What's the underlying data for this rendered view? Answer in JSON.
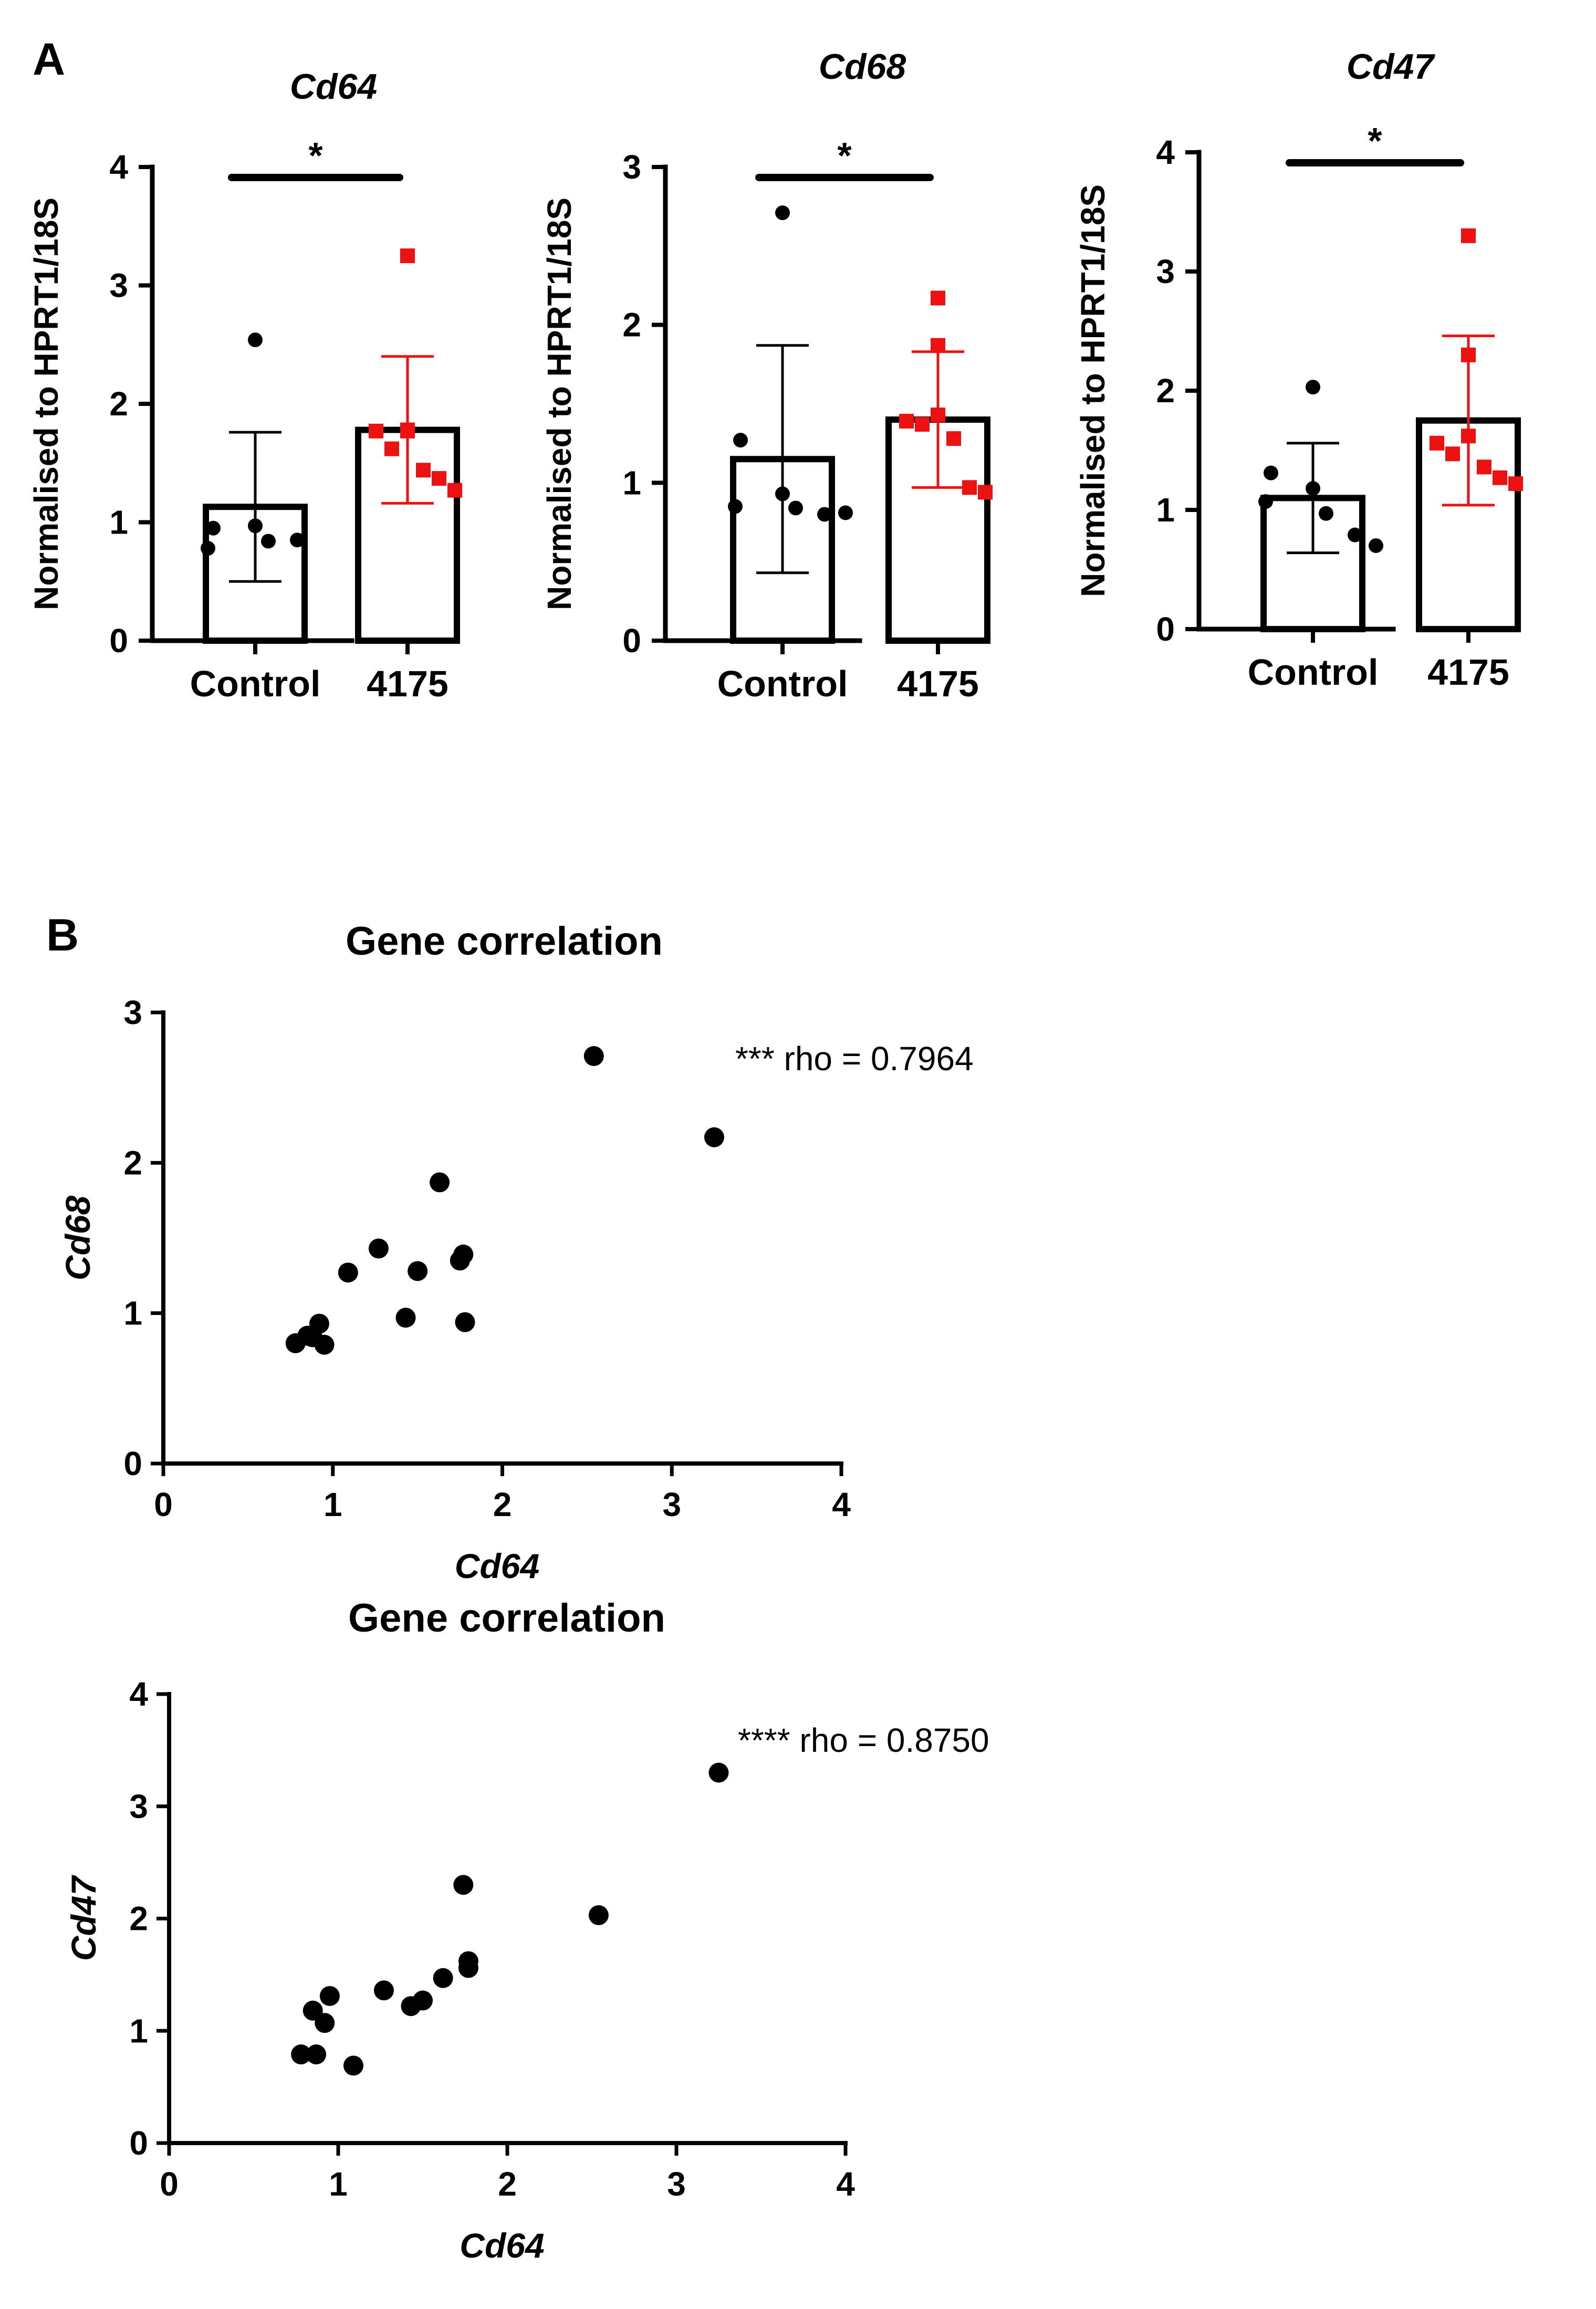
{
  "panels": {
    "a_label": "A",
    "b_label": "B"
  },
  "colors": {
    "control": "#000000",
    "treated": "#ee1111",
    "axis": "#000000"
  },
  "chart_data": [
    {
      "type": "bar",
      "title": "Cd64",
      "ylabel": "Normalised to HPRT1/18S",
      "xlabel": "",
      "ylim": [
        0,
        4
      ],
      "yticks": [
        "0",
        "1",
        "2",
        "3",
        "4"
      ],
      "categories": [
        "Control",
        "4175"
      ],
      "means": [
        1.13,
        1.78
      ],
      "sd": [
        0.63,
        0.62
      ],
      "points": [
        [
          2.54,
          0.95,
          0.97,
          0.78,
          0.84,
          0.85
        ],
        [
          3.25,
          1.78,
          1.77,
          1.77,
          1.62,
          1.44,
          1.37,
          1.27
        ]
      ],
      "significance": "*"
    },
    {
      "type": "bar",
      "title": "Cd68",
      "ylabel": "Normalised to HPRT1/18S",
      "xlabel": "",
      "ylim": [
        0,
        3
      ],
      "yticks": [
        "0",
        "1",
        "2",
        "3"
      ],
      "categories": [
        "Control",
        "4175"
      ],
      "means": [
        1.15,
        1.4
      ],
      "sd": [
        0.72,
        0.43
      ],
      "points": [
        [
          2.71,
          1.27,
          0.93,
          0.85,
          0.84,
          0.8,
          0.81
        ],
        [
          2.17,
          1.87,
          1.43,
          1.39,
          1.37,
          1.28,
          0.97,
          0.94
        ]
      ],
      "significance": "*"
    },
    {
      "type": "bar",
      "title": "Cd47",
      "ylabel": "Normalised to HPRT1/18S",
      "xlabel": "",
      "ylim": [
        0,
        4
      ],
      "yticks": [
        "0",
        "1",
        "2",
        "3",
        "4"
      ],
      "categories": [
        "Control",
        "4175"
      ],
      "means": [
        1.1,
        1.75
      ],
      "sd": [
        0.46,
        0.71
      ],
      "points": [
        [
          2.03,
          1.31,
          1.18,
          1.07,
          0.97,
          0.79,
          0.7
        ],
        [
          3.3,
          2.3,
          1.62,
          1.56,
          1.47,
          1.36,
          1.27,
          1.22
        ]
      ],
      "significance": "*"
    },
    {
      "type": "scatter",
      "title": "Gene correlation",
      "xlabel": "Cd64",
      "ylabel": "Cd68",
      "xlim": [
        0,
        4
      ],
      "ylim": [
        0,
        3
      ],
      "xticks": [
        "0",
        "1",
        "2",
        "3",
        "4"
      ],
      "yticks": [
        "0",
        "1",
        "2",
        "3"
      ],
      "annotation": "*** rho = 0.7964",
      "points": [
        [
          2.54,
          2.71
        ],
        [
          3.25,
          2.17
        ],
        [
          1.63,
          1.87
        ],
        [
          1.27,
          1.43
        ],
        [
          1.77,
          1.39
        ],
        [
          1.75,
          1.35
        ],
        [
          1.09,
          1.27
        ],
        [
          1.5,
          1.28
        ],
        [
          0.92,
          0.93
        ],
        [
          1.43,
          0.97
        ],
        [
          1.78,
          0.94
        ],
        [
          0.85,
          0.85
        ],
        [
          0.78,
          0.8
        ],
        [
          0.95,
          0.79
        ],
        [
          0.88,
          0.84
        ]
      ]
    },
    {
      "type": "scatter",
      "title": "Gene correlation",
      "xlabel": "Cd64",
      "ylabel": "Cd47",
      "xlim": [
        0,
        4
      ],
      "ylim": [
        0,
        4
      ],
      "xticks": [
        "0",
        "1",
        "2",
        "3",
        "4"
      ],
      "yticks": [
        "0",
        "1",
        "2",
        "3",
        "4"
      ],
      "annotation": "**** rho = 0.8750",
      "points": [
        [
          3.25,
          3.3
        ],
        [
          1.74,
          2.3
        ],
        [
          2.54,
          2.03
        ],
        [
          1.77,
          1.62
        ],
        [
          1.77,
          1.56
        ],
        [
          1.62,
          1.47
        ],
        [
          1.27,
          1.36
        ],
        [
          1.5,
          1.27
        ],
        [
          1.43,
          1.22
        ],
        [
          0.95,
          1.31
        ],
        [
          0.85,
          1.18
        ],
        [
          0.92,
          1.07
        ],
        [
          0.78,
          0.79
        ],
        [
          0.87,
          0.79
        ],
        [
          1.09,
          0.69
        ]
      ]
    }
  ]
}
